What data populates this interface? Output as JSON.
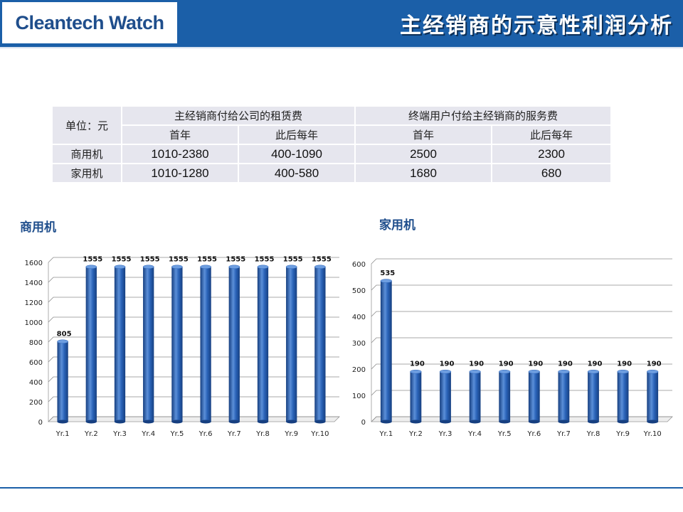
{
  "header": {
    "logo": "Cleantech Watch",
    "title": "主经销商的示意性利润分析"
  },
  "table": {
    "unit_label": "单位：元",
    "group1": "主经销商付给公司的租赁费",
    "group2": "终端用户付给主经销商的服务费",
    "sub": [
      "首年",
      "此后每年",
      "首年",
      "此后每年"
    ],
    "rows": [
      {
        "label": "商用机",
        "cells": [
          "1010-2380",
          "400-1090",
          "2500",
          "2300"
        ]
      },
      {
        "label": "家用机",
        "cells": [
          "1010-1280",
          "400-580",
          "1680",
          "680"
        ]
      }
    ]
  },
  "colors": {
    "bar": "#2a63b8",
    "bar_dark": "#163f80",
    "bar_light": "#5b8fd8",
    "header": "#1b5fa8"
  },
  "chart_data": [
    {
      "type": "bar",
      "title": "商用机",
      "categories": [
        "Yr.1",
        "Yr.2",
        "Yr.3",
        "Yr.4",
        "Yr.5",
        "Yr.6",
        "Yr.7",
        "Yr.8",
        "Yr.9",
        "Yr.10"
      ],
      "values": [
        805,
        1555,
        1555,
        1555,
        1555,
        1555,
        1555,
        1555,
        1555,
        1555
      ],
      "ylim": [
        0,
        1600
      ],
      "yticks": [
        0,
        200,
        400,
        600,
        800,
        1000,
        1200,
        1400,
        1600
      ],
      "grid": true,
      "data_labels": true
    },
    {
      "type": "bar",
      "title": "家用机",
      "categories": [
        "Yr.1",
        "Yr.2",
        "Yr.3",
        "Yr.4",
        "Yr.5",
        "Yr.6",
        "Yr.7",
        "Yr.8",
        "Yr.9",
        "Yr.10"
      ],
      "values": [
        535,
        190,
        190,
        190,
        190,
        190,
        190,
        190,
        190,
        190
      ],
      "ylim": [
        0,
        600
      ],
      "yticks": [
        0,
        100,
        200,
        300,
        400,
        500,
        600
      ],
      "grid": true,
      "data_labels": true
    }
  ]
}
